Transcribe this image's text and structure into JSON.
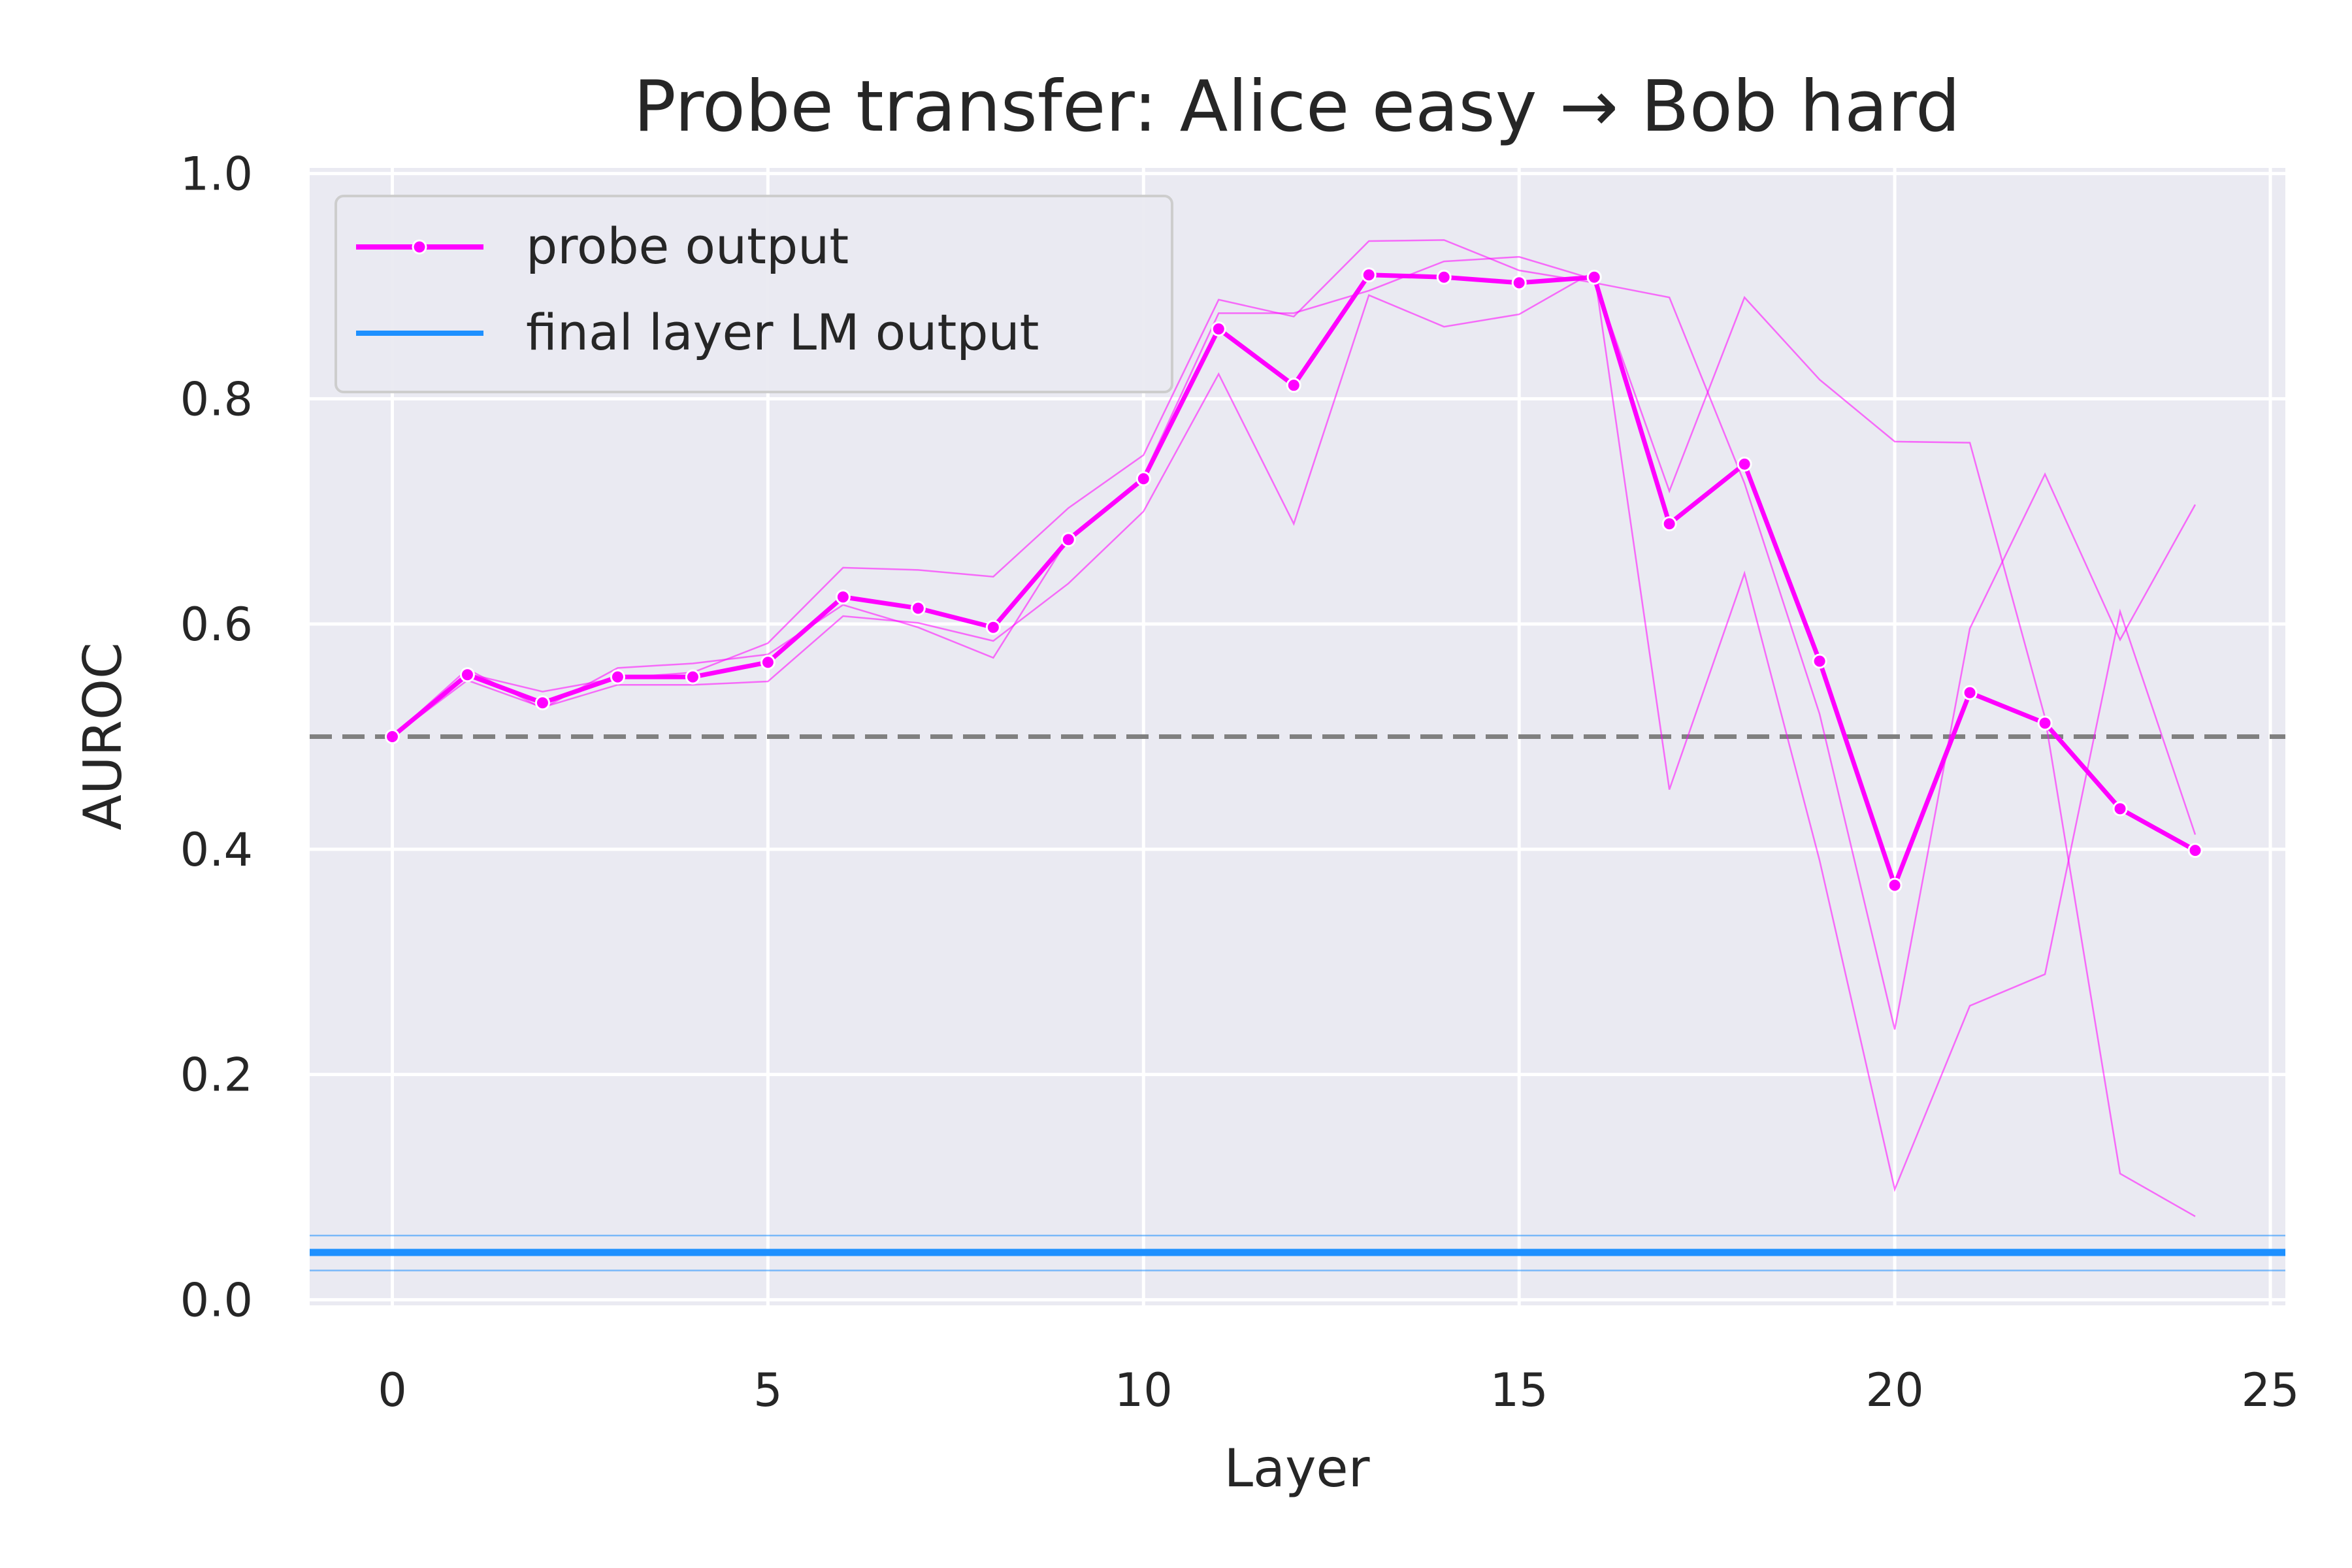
{
  "chart_data": {
    "type": "line",
    "title": "Probe transfer: Alice easy → Bob hard",
    "xlabel": "Layer",
    "ylabel": "AUROC",
    "xlim": [
      -1.1,
      25.2
    ],
    "ylim": [
      -0.005,
      1.005
    ],
    "xticks": [
      0,
      5,
      10,
      15,
      20,
      25
    ],
    "yticks": [
      0.0,
      0.2,
      0.4,
      0.6,
      0.8,
      1.0
    ],
    "xtick_labels": [
      "0",
      "5",
      "10",
      "15",
      "20",
      "25"
    ],
    "ytick_labels": [
      "0.0",
      "0.2",
      "0.4",
      "0.6",
      "0.8",
      "1.0"
    ],
    "grid": true,
    "legend_position": "upper-left",
    "x": [
      0,
      1,
      2,
      3,
      4,
      5,
      6,
      7,
      8,
      9,
      10,
      11,
      12,
      13,
      14,
      15,
      16,
      17,
      18,
      19,
      20,
      21,
      22,
      23,
      24
    ],
    "series": [
      {
        "name": "probe output",
        "color": "#ff00ff",
        "marker": "circle",
        "values": [
          0.5,
          0.555,
          0.53,
          0.553,
          0.553,
          0.566,
          0.624,
          0.614,
          0.597,
          0.675,
          0.729,
          0.862,
          0.812,
          0.91,
          0.908,
          0.903,
          0.908,
          0.689,
          0.742,
          0.567,
          0.368,
          0.539,
          0.512,
          0.436,
          0.399
        ]
      },
      {
        "name": "final layer LM output",
        "color": "#1e90ff",
        "type": "hline",
        "value": 0.042,
        "band": [
          0.026,
          0.057
        ]
      }
    ],
    "runs": [
      {
        "color": "#ff00ff",
        "values": [
          0.5,
          0.556,
          0.54,
          0.552,
          0.557,
          0.583,
          0.65,
          0.648,
          0.642,
          0.703,
          0.75,
          0.888,
          0.873,
          0.94,
          0.941,
          0.914,
          0.903,
          0.89,
          0.725,
          0.52,
          0.24,
          0.596,
          0.733,
          0.586,
          0.706
        ]
      },
      {
        "color": "#ff00ff",
        "values": [
          0.5,
          0.56,
          0.525,
          0.561,
          0.565,
          0.573,
          0.617,
          0.597,
          0.57,
          0.676,
          0.731,
          0.876,
          0.876,
          0.896,
          0.922,
          0.926,
          0.906,
          0.718,
          0.89,
          0.817,
          0.762,
          0.761,
          0.517,
          0.112,
          0.074
        ]
      },
      {
        "color": "#ff00ff",
        "values": [
          0.5,
          0.55,
          0.526,
          0.546,
          0.546,
          0.549,
          0.607,
          0.601,
          0.585,
          0.636,
          0.7,
          0.822,
          0.689,
          0.892,
          0.864,
          0.875,
          0.913,
          0.453,
          0.645,
          0.39,
          0.098,
          0.261,
          0.289,
          0.611,
          0.413
        ]
      }
    ],
    "reference_line": {
      "value": 0.5,
      "color": "#808080",
      "style": "dashed"
    }
  }
}
